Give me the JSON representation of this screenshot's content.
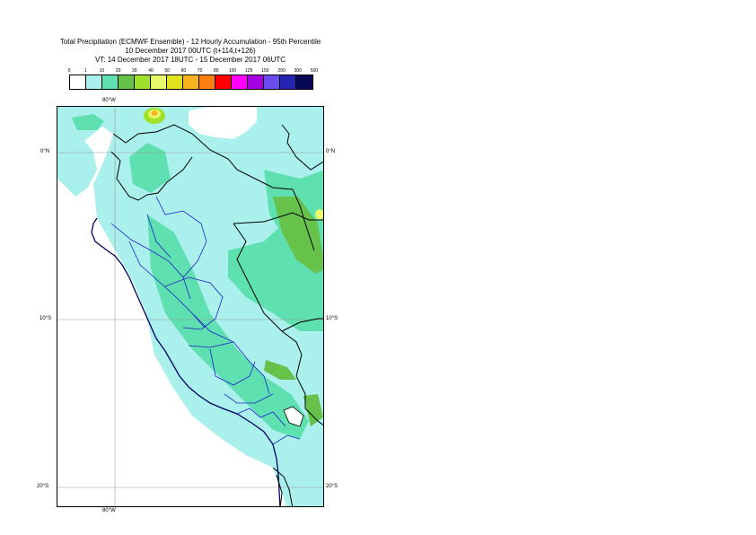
{
  "title": {
    "line1": "Total Precipitation (ECMWF Ensemble) - 12 Hourly Accumulation - 95th Percentile",
    "line2": "10 December 2017 00UTC (t+114,t+126)",
    "line3": "VT: 14 December 2017 18UTC - 15 December 2017 06UTC"
  },
  "legend": {
    "ticks": [
      "0",
      "1",
      "10",
      "20",
      "30",
      "40",
      "50",
      "60",
      "70",
      "80",
      "100",
      "125",
      "150",
      "200",
      "300",
      "500"
    ],
    "colors": [
      "#ffffff",
      "#aaf0ec",
      "#5ee0b0",
      "#66c24a",
      "#9ee02a",
      "#e6fa6a",
      "#e2e21e",
      "#f9b31e",
      "#ff8010",
      "#ff0000",
      "#ff00ff",
      "#a400e0",
      "#6a4cf0",
      "#2424b2",
      "#080858"
    ]
  },
  "axes": {
    "lon_top": "80°W",
    "lon_bottom": "80°W",
    "lat_0_left": "0°N",
    "lat_0_right": "0°N",
    "lat_10_left": "10°S",
    "lat_10_right": "10°S",
    "lat_20_left": "20°S",
    "lat_20_right": "20°S"
  }
}
